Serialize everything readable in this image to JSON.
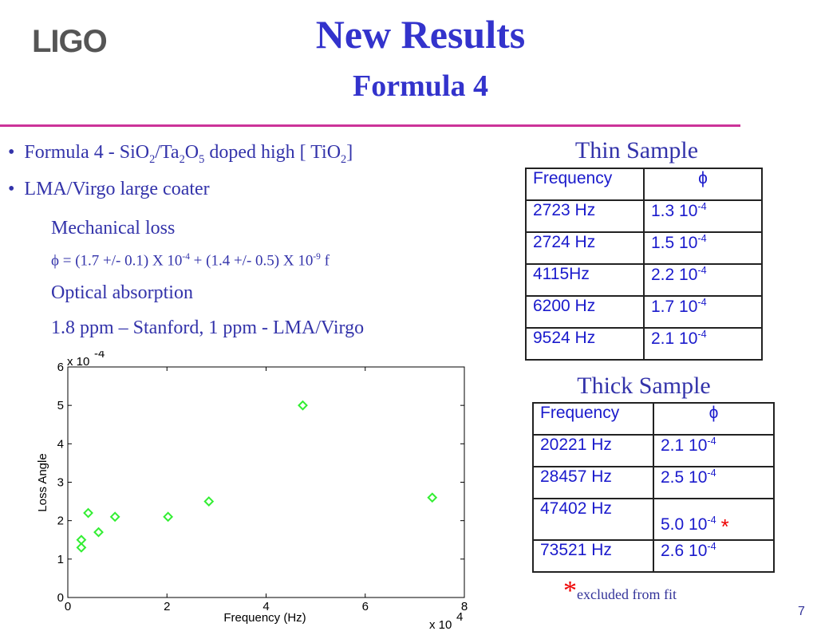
{
  "logo": "LIGO",
  "header": {
    "title": "New Results",
    "subtitle": "Formula 4"
  },
  "bullets": [
    {
      "parts": [
        "Formula 4 - SiO",
        "2",
        "/Ta",
        "2",
        "O",
        "5",
        " doped high [ TiO",
        "2",
        "]"
      ]
    },
    {
      "parts": [
        "LMA/Virgo large coater"
      ]
    }
  ],
  "body": {
    "mech_heading": "Mechanical loss",
    "mech_formula": [
      "ϕ = (1.7 +/- 0.1) X 10",
      "-4",
      " + (1.4 +/- 0.5) X 10",
      "-9",
      " f"
    ],
    "opt_heading": "Optical absorption",
    "opt_text": "1.8 ppm – Stanford, 1 ppm - LMA/Virgo"
  },
  "thin_table": {
    "caption": "Thin Sample",
    "header": [
      "Frequency",
      "ϕ"
    ],
    "rows": [
      [
        "2723 Hz",
        "1.3 10",
        "-4"
      ],
      [
        "2724 Hz",
        "1.5 10",
        "-4"
      ],
      [
        "4115Hz",
        "2.2 10",
        "-4"
      ],
      [
        "6200 Hz",
        "1.7 10",
        "-4"
      ],
      [
        "9524 Hz",
        "2.1 10",
        "-4"
      ]
    ]
  },
  "thick_table": {
    "caption": "Thick Sample",
    "header": [
      "Frequency",
      "ϕ"
    ],
    "rows": [
      [
        "20221 Hz",
        "2.1 10",
        "-4"
      ],
      [
        "28457 Hz",
        "2.5 10",
        "-4"
      ],
      [
        "47402 Hz",
        "5.0 10",
        "-4",
        "*"
      ],
      [
        "73521 Hz",
        "2.6 10",
        "-4"
      ]
    ]
  },
  "footnote": {
    "mark": "*",
    "text": "excluded from fit"
  },
  "page_number": "7",
  "chart_data": {
    "type": "scatter",
    "x_label": "Frequency (Hz)",
    "y_label": "Loss Angle",
    "x_multiplier": [
      "x 10",
      "4"
    ],
    "y_multiplier": [
      "x 10",
      "-4"
    ],
    "x": [
      0.2723,
      0.2724,
      0.4115,
      0.62,
      0.9524,
      2.0221,
      2.8457,
      4.7402,
      7.3521
    ],
    "values": [
      1.3,
      1.5,
      2.2,
      1.7,
      2.1,
      2.1,
      2.5,
      5.0,
      2.6
    ],
    "color": "#33ee33",
    "xlim": [
      0,
      8
    ],
    "xticks": [
      0,
      2,
      4,
      6,
      8
    ],
    "ylim": [
      0,
      6
    ],
    "yticks": [
      0,
      1,
      2,
      3,
      4,
      5,
      6
    ]
  }
}
